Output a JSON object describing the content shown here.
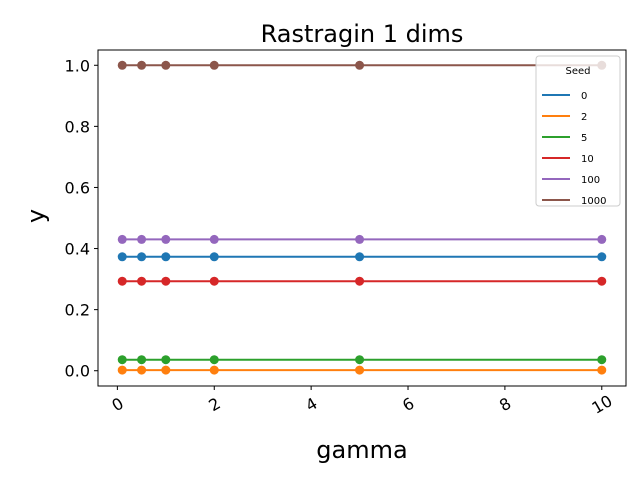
{
  "chart_data": {
    "type": "line",
    "title": "Rastragin 1 dims",
    "xlabel": "gamma",
    "ylabel": "y",
    "x": [
      0.1,
      0.5,
      1,
      2,
      5,
      10
    ],
    "xlim": [
      -0.4,
      10.5
    ],
    "ylim": [
      -0.05,
      1.05
    ],
    "xticks": [
      0,
      2,
      4,
      6,
      8,
      10
    ],
    "xtick_labels": [
      "0",
      "2",
      "4",
      "6",
      "8",
      "10"
    ],
    "yticks": [
      0.0,
      0.2,
      0.4,
      0.6,
      0.8,
      1.0
    ],
    "ytick_labels": [
      "0.0",
      "0.2",
      "0.4",
      "0.6",
      "0.8",
      "1.0"
    ],
    "grid": false,
    "legend": {
      "title": "Seed",
      "placement": "top-right"
    },
    "series": [
      {
        "name": "0",
        "color": "#1f77b4",
        "values": [
          0.373,
          0.373,
          0.373,
          0.373,
          0.373,
          0.373
        ]
      },
      {
        "name": "2",
        "color": "#ff7f0e",
        "values": [
          0.002,
          0.002,
          0.002,
          0.002,
          0.002,
          0.002
        ]
      },
      {
        "name": "5",
        "color": "#2ca02c",
        "values": [
          0.036,
          0.036,
          0.036,
          0.036,
          0.036,
          0.036
        ]
      },
      {
        "name": "10",
        "color": "#d62728",
        "values": [
          0.293,
          0.293,
          0.293,
          0.293,
          0.293,
          0.293
        ]
      },
      {
        "name": "100",
        "color": "#9467bd",
        "values": [
          0.43,
          0.43,
          0.43,
          0.43,
          0.43,
          0.43
        ]
      },
      {
        "name": "1000",
        "color": "#8c564b",
        "values": [
          1.0,
          1.0,
          1.0,
          1.0,
          1.0,
          1.0
        ]
      }
    ]
  }
}
